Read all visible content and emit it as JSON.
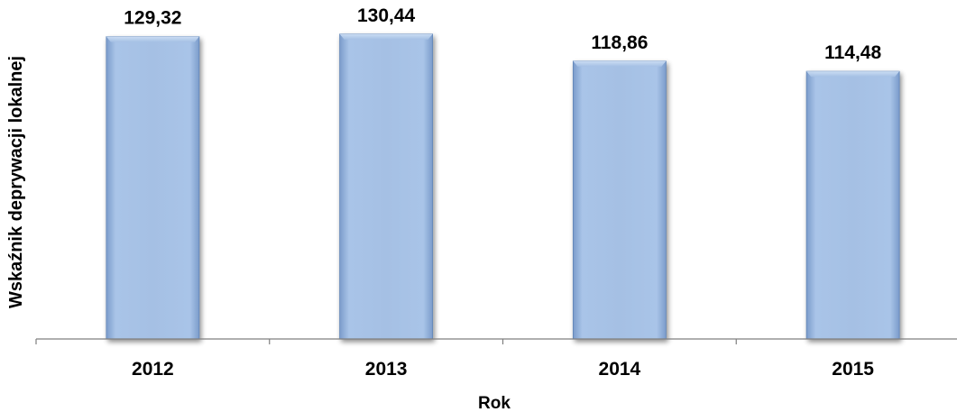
{
  "chart_data": {
    "type": "bar",
    "categories": [
      "2012",
      "2013",
      "2014",
      "2015"
    ],
    "values": [
      129.32,
      130.44,
      118.86,
      114.48
    ],
    "value_labels": [
      "129,32",
      "130,44",
      "118,86",
      "114,48"
    ],
    "xlabel": "Rok",
    "ylabel": "Wskaźnik deprywacji lokalnej",
    "ylim": [
      0,
      145
    ],
    "grid": false,
    "legend": "none",
    "colors": {
      "bar_fill": "#a5c0e4",
      "bar_edge": "#5f84b6",
      "axis": "#7f7f7f"
    }
  }
}
